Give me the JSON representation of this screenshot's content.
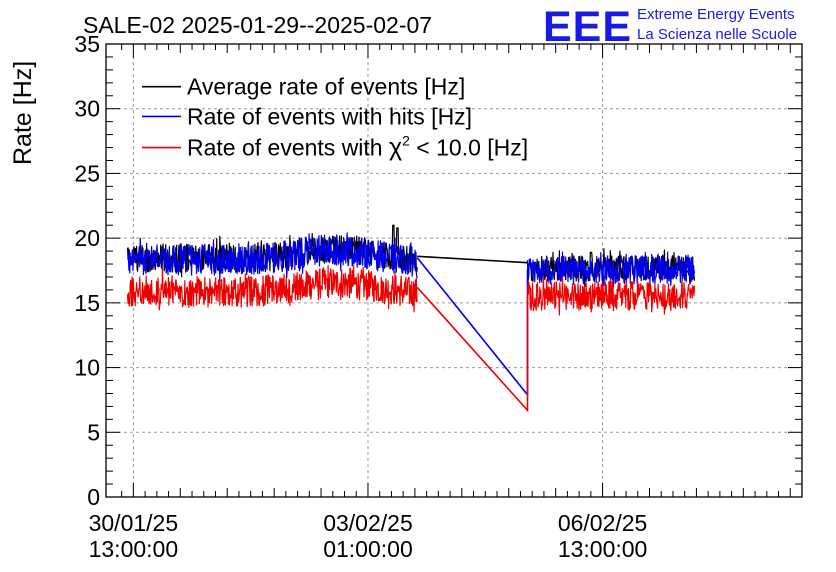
{
  "header": {
    "title": "SALE-02 2025-01-29--2025-02-07",
    "logo_text": "EEE",
    "logo_line1": "Extreme Energy Events",
    "logo_line2": "La Scienza nelle Scuole",
    "logo_color": "#1a1ae6"
  },
  "chart_data": {
    "type": "line",
    "title": "SALE-02 2025-01-29--2025-02-07",
    "xlabel": "",
    "ylabel": "Rate [Hz]",
    "ylim": [
      0,
      35
    ],
    "yticks": [
      0,
      5,
      10,
      15,
      20,
      25,
      30,
      35
    ],
    "xlim_hours": [
      -7,
      171
    ],
    "x_unit": "hours since 30/01/25 13:00:00",
    "xticks": [
      {
        "t": 0,
        "date": "30/01/25",
        "time": "13:00:00"
      },
      {
        "t": 60,
        "date": "03/02/25",
        "time": "01:00:00"
      },
      {
        "t": 120,
        "date": "06/02/25",
        "time": "13:00:00"
      }
    ],
    "grid": true,
    "legend_position": "top-left",
    "series": [
      {
        "name": "Average rate of events [Hz]",
        "color": "#000000",
        "segments": [
          {
            "t_start": -1.5,
            "t_end": 72.6,
            "base_start": 18.5,
            "base_mid": 18.2,
            "bump_center": 52,
            "bump": 0.9,
            "noise": 1.1,
            "spikes": [
              [
                66.5,
                21.0
              ],
              [
                67.5,
                20.8
              ]
            ]
          },
          {
            "t_start": 100.8,
            "t_end": 143.5,
            "base_start": 17.6,
            "base_mid": 17.7,
            "bump_center": 120,
            "bump": 0.0,
            "noise": 1.0,
            "spikes": [
              [
                117,
                18.9
              ]
            ]
          }
        ],
        "bridge": [
          [
            72.6,
            18.6
          ],
          [
            100.8,
            18.1
          ]
        ]
      },
      {
        "name": "Rate of events with hits [Hz]",
        "color": "#0000ee",
        "segments": [
          {
            "t_start": -1.5,
            "t_end": 72.6,
            "base_start": 18.4,
            "base_mid": 18.1,
            "bump_center": 52,
            "bump": 0.9,
            "noise": 1.2,
            "spikes": []
          },
          {
            "t_start": 100.8,
            "t_end": 143.5,
            "base_start": 17.5,
            "base_mid": 17.6,
            "bump_center": 120,
            "bump": 0.0,
            "noise": 1.1,
            "spikes": []
          }
        ],
        "bridge": [
          [
            72.6,
            18.5
          ],
          [
            100.8,
            7.9
          ],
          [
            100.8,
            17.6
          ]
        ]
      },
      {
        "name": "Rate of events with χ² < 10.0 [Hz]",
        "color": "#ee0000",
        "segments": [
          {
            "t_start": -1.5,
            "t_end": 72.6,
            "base_start": 15.9,
            "base_mid": 15.7,
            "bump_center": 52,
            "bump": 0.8,
            "noise": 1.2,
            "spikes": []
          },
          {
            "t_start": 100.8,
            "t_end": 143.5,
            "base_start": 15.5,
            "base_mid": 15.6,
            "bump_center": 120,
            "bump": 0.0,
            "noise": 1.1,
            "spikes": []
          }
        ],
        "bridge": [
          [
            72.6,
            16.2
          ],
          [
            100.8,
            6.7
          ],
          [
            100.8,
            15.6
          ]
        ]
      }
    ],
    "legend": [
      {
        "label_main": "Rate of events with ",
        "label_sym": "χ",
        "label_sup": "2",
        "label_rest": " < 10.0 [Hz]"
      }
    ]
  }
}
